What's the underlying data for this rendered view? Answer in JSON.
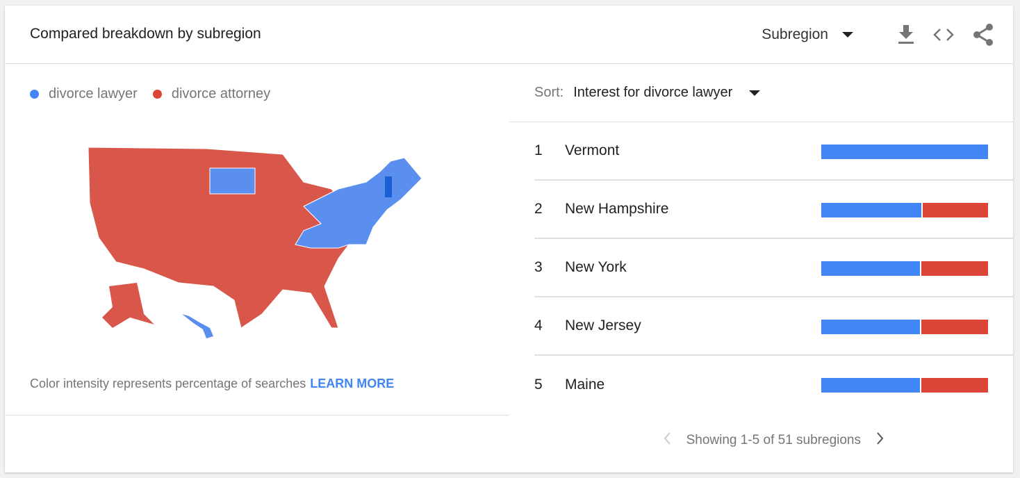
{
  "header": {
    "title": "Compared breakdown by subregion",
    "region_select": "Subregion",
    "icons": [
      "download-icon",
      "embed-code-icon",
      "share-icon"
    ]
  },
  "legend": [
    {
      "label": "divorce lawyer",
      "color": "#4285f4"
    },
    {
      "label": "divorce attorney",
      "color": "#db4437"
    }
  ],
  "map": {
    "blue_states": [
      "Vermont",
      "New Hampshire",
      "New York",
      "New Jersey",
      "Maine",
      "Massachusetts",
      "Connecticut",
      "Rhode Island",
      "Pennsylvania",
      "Maryland",
      "Delaware",
      "Virginia",
      "West Virginia",
      "Kentucky",
      "South Dakota",
      "Hawaii"
    ],
    "default": "divorce attorney"
  },
  "note": {
    "text": "Color intensity represents percentage of searches",
    "link": "LEARN MORE"
  },
  "sort": {
    "label": "Sort:",
    "value": "Interest for divorce lawyer"
  },
  "rows": [
    {
      "rank": "1",
      "name": "Vermont",
      "lawyer_pct": 100,
      "attorney_pct": 0
    },
    {
      "rank": "2",
      "name": "New Hampshire",
      "lawyer_pct": 60,
      "attorney_pct": 40
    },
    {
      "rank": "3",
      "name": "New York",
      "lawyer_pct": 59,
      "attorney_pct": 41
    },
    {
      "rank": "4",
      "name": "New Jersey",
      "lawyer_pct": 59,
      "attorney_pct": 41
    },
    {
      "rank": "5",
      "name": "Maine",
      "lawyer_pct": 59,
      "attorney_pct": 41
    }
  ],
  "pager": {
    "text": "Showing 1-5 of 51 subregions"
  }
}
